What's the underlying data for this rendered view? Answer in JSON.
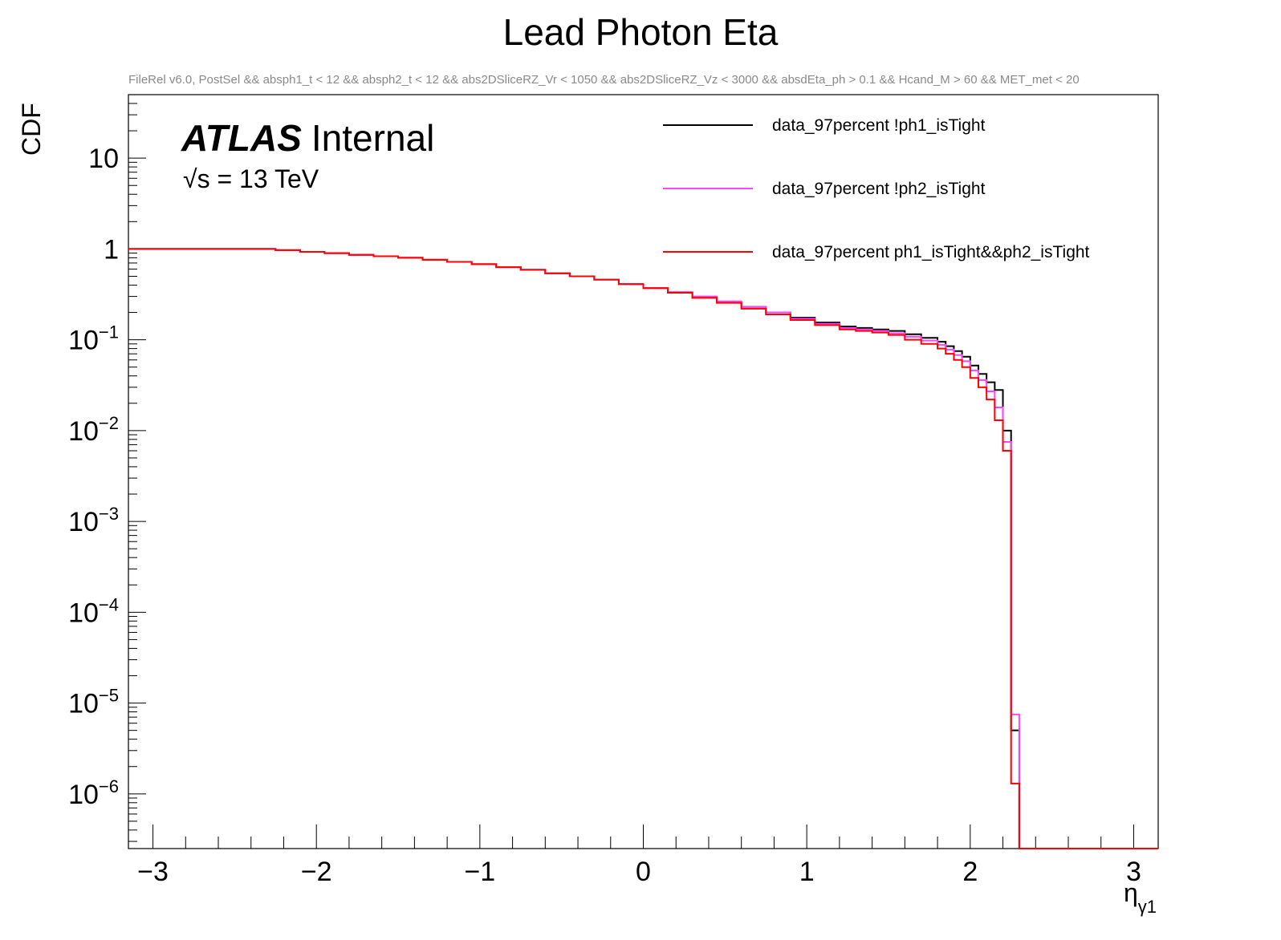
{
  "chart_data": {
    "type": "line",
    "step": true,
    "title": "Lead Photon Eta",
    "subtitle": "FileRel v6.0, PostSel &&  absph1_t < 12 && absph2_t < 12 && abs2DSliceRZ_Vr < 1050 && abs2DSliceRZ_Vz < 3000 && absdEta_ph > 0.1 && Hcand_M > 60 && MET_met < 20",
    "xlabel": "η",
    "xlabel_sub": "γ1",
    "ylabel": "CDF",
    "xlim": [
      -3.15,
      3.15
    ],
    "ylim": [
      2.5e-07,
      50
    ],
    "yscale": "log",
    "grid": false,
    "legend_position": "top-right",
    "x_ticks": [
      {
        "value": -3,
        "label": "−3"
      },
      {
        "value": -2,
        "label": "−2"
      },
      {
        "value": -1,
        "label": "−1"
      },
      {
        "value": 0,
        "label": "0"
      },
      {
        "value": 1,
        "label": "1"
      },
      {
        "value": 2,
        "label": "2"
      },
      {
        "value": 3,
        "label": "3"
      }
    ],
    "y_ticks": [
      {
        "value": 10,
        "base": "10",
        "exp": ""
      },
      {
        "value": 1,
        "base": "1",
        "exp": ""
      },
      {
        "value": 0.1,
        "base": "10",
        "exp": "−1"
      },
      {
        "value": 0.01,
        "base": "10",
        "exp": "−2"
      },
      {
        "value": 0.001,
        "base": "10",
        "exp": "−3"
      },
      {
        "value": 0.0001,
        "base": "10",
        "exp": "−4"
      },
      {
        "value": 1e-05,
        "base": "10",
        "exp": "−5"
      },
      {
        "value": 1e-06,
        "base": "10",
        "exp": "−6"
      }
    ],
    "bin_edges": [
      -3.15,
      -2.25,
      -2.1,
      -1.95,
      -1.8,
      -1.65,
      -1.5,
      -1.35,
      -1.2,
      -1.05,
      -0.9,
      -0.75,
      -0.6,
      -0.45,
      -0.3,
      -0.15,
      0,
      0.15,
      0.3,
      0.45,
      0.6,
      0.75,
      0.9,
      1.05,
      1.2,
      1.3,
      1.4,
      1.5,
      1.6,
      1.7,
      1.8,
      1.85,
      1.9,
      1.95,
      2.0,
      2.05,
      2.1,
      2.15,
      2.2,
      2.25,
      2.3,
      2.35,
      2.4,
      2.45,
      3.15
    ],
    "series": [
      {
        "name": "data_97percent !ph1_isTight",
        "color": "#000000",
        "values": [
          1,
          0.97,
          0.93,
          0.9,
          0.86,
          0.83,
          0.8,
          0.76,
          0.72,
          0.68,
          0.63,
          0.59,
          0.54,
          0.5,
          0.46,
          0.41,
          0.37,
          0.33,
          0.29,
          0.26,
          0.23,
          0.2,
          0.175,
          0.155,
          0.14,
          0.135,
          0.13,
          0.125,
          0.115,
          0.105,
          0.095,
          0.085,
          0.075,
          0.065,
          0.052,
          0.042,
          0.034,
          0.028,
          0.01,
          5e-06,
          0,
          0,
          0,
          0
        ]
      },
      {
        "name": "data_97percent !ph2_isTight",
        "color": "#ff44ff",
        "values": [
          1,
          0.97,
          0.93,
          0.9,
          0.86,
          0.83,
          0.8,
          0.76,
          0.72,
          0.68,
          0.63,
          0.59,
          0.54,
          0.5,
          0.46,
          0.41,
          0.37,
          0.335,
          0.3,
          0.265,
          0.23,
          0.2,
          0.17,
          0.15,
          0.135,
          0.13,
          0.125,
          0.118,
          0.108,
          0.098,
          0.088,
          0.078,
          0.068,
          0.058,
          0.046,
          0.036,
          0.027,
          0.018,
          0.0075,
          7.5e-06,
          0,
          0,
          0,
          0
        ]
      },
      {
        "name": "data_97percent ph1_isTight&&ph2_isTight",
        "color": "#ff0000",
        "values": [
          1,
          0.97,
          0.93,
          0.9,
          0.86,
          0.83,
          0.8,
          0.76,
          0.72,
          0.68,
          0.63,
          0.59,
          0.54,
          0.5,
          0.46,
          0.41,
          0.37,
          0.33,
          0.29,
          0.255,
          0.22,
          0.19,
          0.165,
          0.145,
          0.13,
          0.125,
          0.12,
          0.113,
          0.1,
          0.09,
          0.08,
          0.07,
          0.06,
          0.05,
          0.038,
          0.03,
          0.022,
          0.013,
          0.006,
          1.3e-06,
          0,
          0,
          0,
          0
        ]
      }
    ]
  },
  "annotations": {
    "atlas_bold": "ATLAS",
    "atlas_rest": "Internal",
    "energy_sqrt": "√s",
    "energy_rest": " = 13 TeV"
  }
}
